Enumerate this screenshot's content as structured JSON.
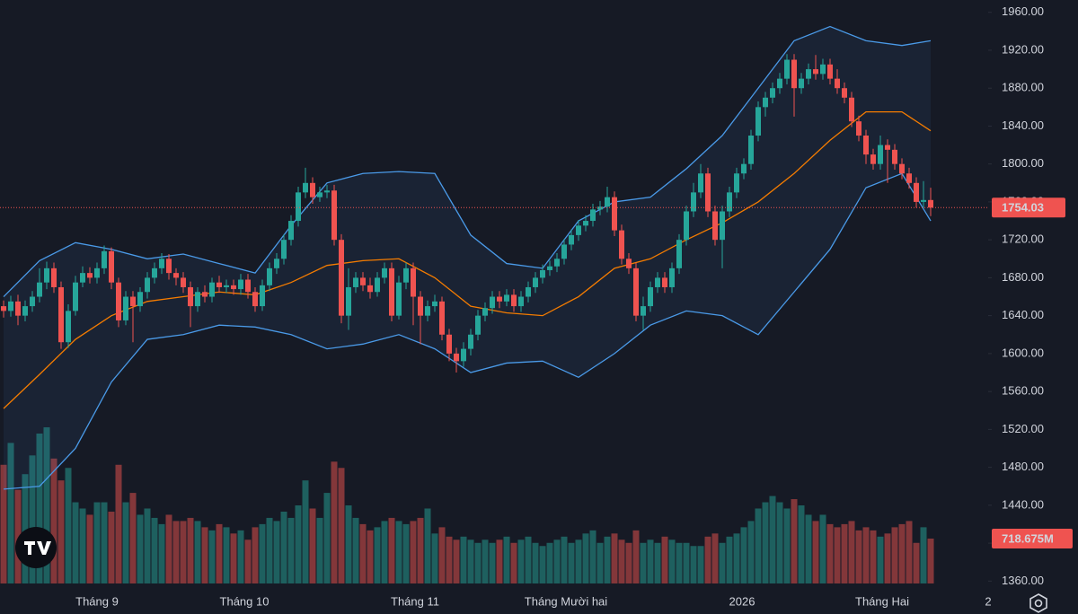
{
  "chart_data": {
    "type": "candlestick",
    "up_color": "#26a69a",
    "down_color": "#ef5350",
    "open": [
      1650,
      1645,
      1655,
      1640,
      1650,
      1660,
      1675,
      1690,
      1670,
      1612,
      1645,
      1675,
      1685,
      1680,
      1690,
      1708,
      1675,
      1635,
      1660,
      1650,
      1665,
      1680,
      1690,
      1700,
      1685,
      1680,
      1670,
      1650,
      1665,
      1660,
      1675,
      1670,
      1672,
      1668,
      1678,
      1665,
      1650,
      1672,
      1690,
      1700,
      1720,
      1740,
      1770,
      1780,
      1765,
      1770,
      1772,
      1720,
      1640,
      1670,
      1680,
      1672,
      1665,
      1680,
      1690,
      1640,
      1675,
      1690,
      1660,
      1640,
      1650,
      1655,
      1620,
      1600,
      1592,
      1605,
      1620,
      1640,
      1648,
      1660,
      1655,
      1662,
      1650,
      1660,
      1670,
      1680,
      1688,
      1692,
      1700,
      1715,
      1725,
      1735,
      1740,
      1752,
      1755,
      1765,
      1730,
      1700,
      1690,
      1640,
      1650,
      1670,
      1680,
      1670,
      1690,
      1720,
      1750,
      1770,
      1790,
      1750,
      1720,
      1750,
      1770,
      1790,
      1800,
      1830,
      1860,
      1870,
      1880,
      1890,
      1910,
      1880,
      1890,
      1900,
      1895,
      1905,
      1890,
      1880,
      1870,
      1845,
      1830,
      1810,
      1800,
      1820,
      1815,
      1800,
      1790,
      1780,
      1760,
      1762
    ],
    "high": [
      1656,
      1661,
      1662,
      1656,
      1666,
      1690,
      1697,
      1696,
      1676,
      1652,
      1682,
      1692,
      1691,
      1696,
      1714,
      1712,
      1680,
      1666,
      1666,
      1670,
      1686,
      1696,
      1706,
      1705,
      1690,
      1686,
      1676,
      1670,
      1672,
      1680,
      1682,
      1678,
      1678,
      1684,
      1684,
      1670,
      1678,
      1696,
      1706,
      1726,
      1746,
      1776,
      1796,
      1786,
      1776,
      1778,
      1778,
      1726,
      1690,
      1686,
      1686,
      1680,
      1686,
      1696,
      1696,
      1682,
      1696,
      1696,
      1666,
      1656,
      1662,
      1660,
      1626,
      1606,
      1612,
      1626,
      1646,
      1654,
      1666,
      1666,
      1668,
      1668,
      1666,
      1676,
      1686,
      1694,
      1698,
      1706,
      1721,
      1731,
      1741,
      1746,
      1758,
      1761,
      1776,
      1771,
      1736,
      1706,
      1696,
      1660,
      1676,
      1686,
      1686,
      1696,
      1726,
      1756,
      1780,
      1800,
      1796,
      1756,
      1756,
      1776,
      1796,
      1806,
      1836,
      1866,
      1876,
      1886,
      1896,
      1916,
      1916,
      1896,
      1906,
      1915,
      1911,
      1911,
      1900,
      1886,
      1876,
      1851,
      1836,
      1816,
      1830,
      1826,
      1821,
      1806,
      1796,
      1786,
      1782,
      1775
    ],
    "low": [
      1638,
      1639,
      1630,
      1634,
      1644,
      1654,
      1668,
      1664,
      1605,
      1606,
      1640,
      1670,
      1674,
      1674,
      1684,
      1668,
      1628,
      1630,
      1612,
      1644,
      1658,
      1674,
      1684,
      1678,
      1672,
      1664,
      1628,
      1644,
      1654,
      1654,
      1664,
      1664,
      1662,
      1662,
      1658,
      1644,
      1645,
      1666,
      1684,
      1694,
      1714,
      1734,
      1764,
      1758,
      1760,
      1764,
      1714,
      1632,
      1625,
      1664,
      1666,
      1658,
      1660,
      1674,
      1634,
      1636,
      1668,
      1630,
      1610,
      1634,
      1644,
      1614,
      1592,
      1580,
      1586,
      1598,
      1614,
      1634,
      1642,
      1648,
      1650,
      1644,
      1644,
      1654,
      1664,
      1674,
      1682,
      1686,
      1694,
      1709,
      1719,
      1729,
      1734,
      1746,
      1749,
      1724,
      1694,
      1684,
      1634,
      1625,
      1644,
      1664,
      1664,
      1664,
      1684,
      1714,
      1744,
      1764,
      1744,
      1714,
      1690,
      1744,
      1764,
      1784,
      1794,
      1824,
      1850,
      1864,
      1874,
      1884,
      1850,
      1874,
      1884,
      1889,
      1889,
      1884,
      1874,
      1864,
      1839,
      1824,
      1800,
      1794,
      1794,
      1780,
      1794,
      1784,
      1774,
      1754,
      1754,
      1745
    ],
    "close": [
      1645,
      1655,
      1640,
      1650,
      1660,
      1675,
      1690,
      1670,
      1612,
      1645,
      1675,
      1685,
      1680,
      1690,
      1708,
      1675,
      1635,
      1660,
      1650,
      1665,
      1680,
      1690,
      1700,
      1685,
      1680,
      1670,
      1650,
      1665,
      1660,
      1675,
      1670,
      1672,
      1668,
      1678,
      1665,
      1650,
      1672,
      1690,
      1700,
      1720,
      1740,
      1770,
      1780,
      1765,
      1770,
      1772,
      1720,
      1640,
      1670,
      1680,
      1672,
      1665,
      1680,
      1690,
      1640,
      1675,
      1690,
      1660,
      1640,
      1650,
      1655,
      1620,
      1600,
      1592,
      1605,
      1620,
      1640,
      1648,
      1660,
      1655,
      1662,
      1650,
      1660,
      1670,
      1680,
      1688,
      1692,
      1700,
      1715,
      1725,
      1735,
      1740,
      1752,
      1755,
      1765,
      1730,
      1700,
      1690,
      1640,
      1650,
      1670,
      1680,
      1670,
      1690,
      1720,
      1750,
      1770,
      1790,
      1750,
      1720,
      1750,
      1770,
      1790,
      1800,
      1830,
      1860,
      1870,
      1880,
      1890,
      1910,
      1880,
      1890,
      1900,
      1895,
      1905,
      1890,
      1880,
      1870,
      1845,
      1830,
      1810,
      1800,
      1820,
      1815,
      1800,
      1790,
      1780,
      1760,
      1762,
      1754.03
    ],
    "volume": [
      1900,
      2250,
      1500,
      1750,
      2050,
      2400,
      2500,
      2000,
      1650,
      1850,
      1300,
      1200,
      1100,
      1300,
      1300,
      1150,
      1900,
      1300,
      1450,
      1100,
      1200,
      1050,
      950,
      1100,
      1000,
      1000,
      1050,
      1000,
      900,
      850,
      950,
      900,
      800,
      850,
      700,
      900,
      950,
      1050,
      1000,
      1150,
      1050,
      1250,
      1650,
      1200,
      1050,
      1450,
      1950,
      1850,
      1250,
      1050,
      950,
      850,
      900,
      1000,
      1050,
      1000,
      950,
      1000,
      1050,
      1200,
      800,
      900,
      750,
      700,
      750,
      700,
      650,
      700,
      650,
      700,
      750,
      650,
      700,
      750,
      650,
      600,
      650,
      700,
      750,
      650,
      700,
      800,
      850,
      650,
      750,
      800,
      700,
      650,
      850,
      650,
      700,
      650,
      750,
      700,
      650,
      650,
      600,
      600,
      750,
      800,
      650,
      750,
      800,
      900,
      1000,
      1200,
      1300,
      1400,
      1300,
      1200,
      1350,
      1250,
      1100,
      1000,
      1100,
      950,
      900,
      950,
      1000,
      850,
      900,
      850,
      750,
      800,
      900,
      950,
      1000,
      650,
      900,
      718.675
    ],
    "last_volume_label": "718.675M",
    "volume_lim": [
      0,
      9340
    ],
    "bands": {
      "index": [
        0,
        5,
        10,
        15,
        20,
        25,
        30,
        35,
        40,
        45,
        50,
        55,
        60,
        65,
        70,
        75,
        80,
        85,
        90,
        95,
        100,
        105,
        110,
        115,
        120,
        125,
        129
      ],
      "upper": [
        1660,
        1698,
        1717,
        1710,
        1700,
        1705,
        1695,
        1685,
        1735,
        1780,
        1790,
        1792,
        1790,
        1725,
        1695,
        1690,
        1740,
        1760,
        1765,
        1795,
        1830,
        1880,
        1930,
        1945,
        1930,
        1925,
        1930
      ],
      "middle": [
        1542,
        1578,
        1615,
        1640,
        1655,
        1660,
        1665,
        1662,
        1675,
        1693,
        1698,
        1700,
        1680,
        1650,
        1643,
        1640,
        1660,
        1690,
        1700,
        1720,
        1738,
        1760,
        1790,
        1825,
        1855,
        1855,
        1835
      ],
      "lower": [
        1457,
        1460,
        1500,
        1570,
        1615,
        1620,
        1630,
        1628,
        1620,
        1605,
        1610,
        1620,
        1605,
        1580,
        1590,
        1592,
        1575,
        1600,
        1630,
        1645,
        1640,
        1620,
        1665,
        1710,
        1775,
        1790,
        1740
      ],
      "band_color": "#4a9ae8",
      "middle_color": "#f57c00"
    },
    "ylim": [
      1348,
      1973
    ],
    "yticks": [
      {
        "value": 1360,
        "label": "1360.00"
      },
      {
        "value": 1400,
        "label": "1400.00"
      },
      {
        "value": 1440,
        "label": "1440.00"
      },
      {
        "value": 1480,
        "label": "1480.00"
      },
      {
        "value": 1520,
        "label": "1520.00"
      },
      {
        "value": 1560,
        "label": "1560.00"
      },
      {
        "value": 1600,
        "label": "1600.00"
      },
      {
        "value": 1640,
        "label": "1640.00"
      },
      {
        "value": 1680,
        "label": "1680.00"
      },
      {
        "value": 1720,
        "label": "1720.00"
      },
      {
        "value": 1760,
        "label": "1760.00"
      },
      {
        "value": 1800,
        "label": "1800.00"
      },
      {
        "value": 1840,
        "label": "1840.00"
      },
      {
        "value": 1880,
        "label": "1880.00"
      },
      {
        "value": 1920,
        "label": "1920.00"
      },
      {
        "value": 1960,
        "label": "1960.00"
      }
    ],
    "xtick_labels": [
      "Tháng 9",
      "Tháng 10",
      "Tháng 11",
      "Tháng Mười hai",
      "2026",
      "Tháng Hai",
      "2"
    ],
    "xtick_index": [
      13,
      33.5,
      57.25,
      78.25,
      102.75,
      122.25,
      137
    ],
    "grid": false
  }
}
